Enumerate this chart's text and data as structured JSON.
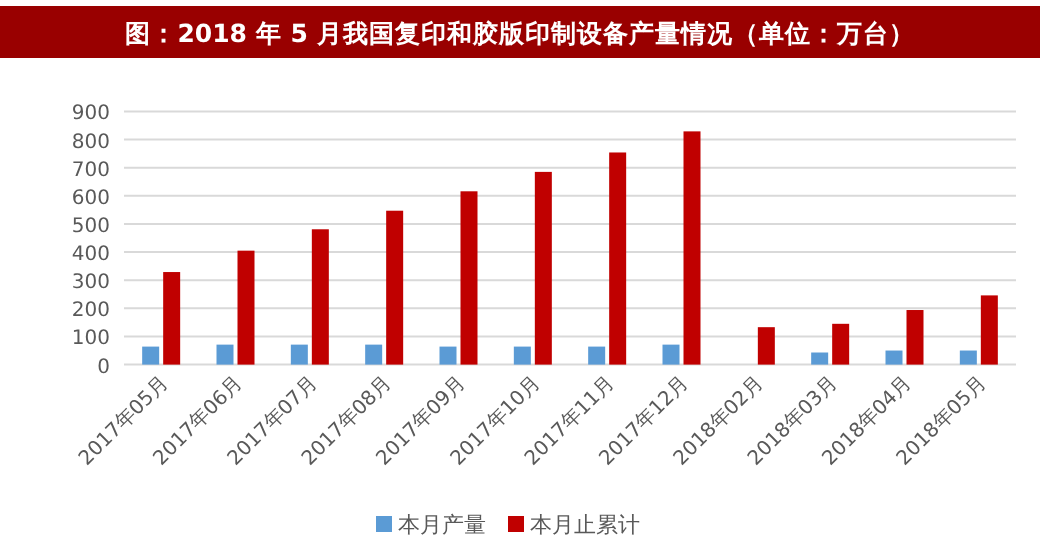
{
  "chart_data": {
    "type": "bar",
    "title": "图：2018 年 5 月我国复印和胶版印制设备产量情况（单位：万台）",
    "categories": [
      "2017年05月",
      "2017年06月",
      "2017年07月",
      "2017年08月",
      "2017年09月",
      "2017年10月",
      "2017年11月",
      "2017年12月",
      "2018年02月",
      "2018年03月",
      "2018年04月",
      "2018年05月"
    ],
    "series": [
      {
        "name": "本月产量",
        "color": "#5b9bd5",
        "values": [
          64,
          71,
          71,
          71,
          64,
          64,
          64,
          71,
          null,
          43,
          50,
          50
        ]
      },
      {
        "name": "本月止累计",
        "color": "#c00000",
        "values": [
          329,
          405,
          481,
          547,
          616,
          685,
          754,
          829,
          133,
          145,
          194,
          246
        ]
      }
    ],
    "ylim": [
      0,
      900
    ],
    "yticks": [
      0,
      100,
      200,
      300,
      400,
      500,
      600,
      700,
      800,
      900
    ],
    "grid": "y",
    "legend": "bottom"
  }
}
